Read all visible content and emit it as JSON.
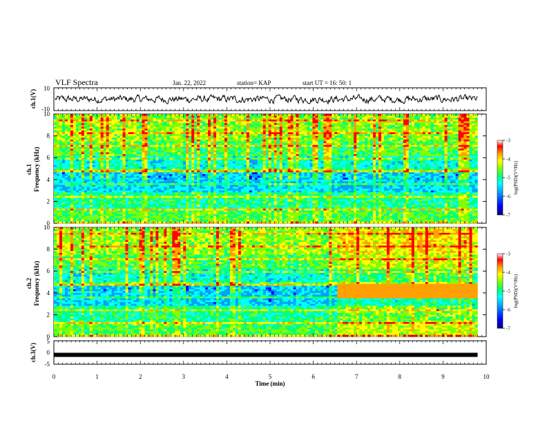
{
  "header": {
    "title": "VLF Spectra",
    "date": "Jan. 22, 2022",
    "station": "station= KAP",
    "start": "start  UT =   16: 50: 1"
  },
  "colors": {
    "spectrogram_scale": [
      "#000080",
      "#0000ff",
      "#00a0ff",
      "#00ffff",
      "#00ff80",
      "#80ff00",
      "#ffff00",
      "#ffa000",
      "#ff0000",
      "#ffffff"
    ],
    "trace": "#000000"
  },
  "chart_data": [
    {
      "type": "line",
      "panel": "ch1-waveform",
      "ylabel": "ch.1(V)",
      "ylim": [
        -10,
        10
      ],
      "yticks": [
        "10",
        "-10"
      ],
      "note_series": "noisy waveform fluctuating roughly between -3 and 3 V"
    },
    {
      "type": "heatmap",
      "panel": "ch1-spectrogram",
      "ylabel": "ch.1",
      "ylabel2": "Frequency (kHz)",
      "ylim": [
        0,
        10
      ],
      "yticks": [
        "0",
        "2",
        "4",
        "6",
        "8",
        "10"
      ],
      "colorbar": {
        "label": "log(PSD)(V²/Hz)",
        "ticks": [
          "-3",
          "-4",
          "-5",
          "-6",
          "-7"
        ],
        "range": [
          -7,
          -3
        ]
      },
      "x_end_min": 9.8
    },
    {
      "type": "heatmap",
      "panel": "ch2-spectrogram",
      "ylabel": "ch.2",
      "ylabel2": "Frequency (kHz)",
      "ylim": [
        0,
        10
      ],
      "yticks": [
        "0",
        "2",
        "4",
        "6",
        "8",
        "10"
      ],
      "colorbar": {
        "label": "log(PSD)(V²/Hz)",
        "ticks": [
          "-3",
          "-4",
          "-5",
          "-6",
          "-7"
        ],
        "range": [
          -7,
          -3
        ]
      },
      "regime_change_min": 6.5,
      "x_end_min": 9.8
    },
    {
      "type": "line",
      "panel": "ch3-waveform",
      "ylabel": "ch.3(V)",
      "ylim": [
        -5,
        5
      ],
      "yticks": [
        "5",
        "0",
        "-5"
      ],
      "level": -1
    }
  ],
  "xaxis": {
    "label": "Time  (min)",
    "ticks": [
      "0",
      "1",
      "2",
      "3",
      "4",
      "5",
      "6",
      "7",
      "8",
      "9",
      "10"
    ],
    "xlim": [
      0,
      10
    ]
  }
}
